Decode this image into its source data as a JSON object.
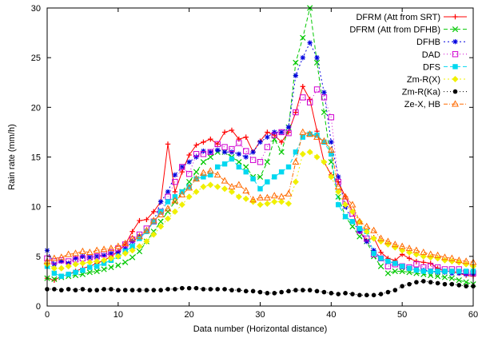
{
  "chart_data": {
    "type": "line",
    "title": "",
    "xlabel": "Data number (Horizontal distance)",
    "ylabel": "Rain rate (mm/h)",
    "xlim": [
      0,
      60
    ],
    "ylim": [
      0,
      30
    ],
    "xticks": [
      0,
      10,
      20,
      30,
      40,
      50,
      60
    ],
    "yticks": [
      0,
      5,
      10,
      15,
      20,
      25,
      30
    ],
    "grid": false,
    "legend_position": "top-right",
    "x": [
      0,
      1,
      2,
      3,
      4,
      5,
      6,
      7,
      8,
      9,
      10,
      11,
      12,
      13,
      14,
      15,
      16,
      17,
      18,
      19,
      20,
      21,
      22,
      23,
      24,
      25,
      26,
      27,
      28,
      29,
      30,
      31,
      32,
      33,
      34,
      35,
      36,
      37,
      38,
      39,
      40,
      41,
      42,
      43,
      44,
      45,
      46,
      47,
      48,
      49,
      50,
      51,
      52,
      53,
      54,
      55,
      56,
      57,
      58,
      59,
      60
    ],
    "series": [
      {
        "name": "DFRM (Att from SRT)",
        "color": "#ff0000",
        "marker": "plus",
        "dash": "",
        "values": [
          2.8,
          2.6,
          3.0,
          3.2,
          3.5,
          3.8,
          4.0,
          4.3,
          4.6,
          5.0,
          5.5,
          6.2,
          7.5,
          8.6,
          8.7,
          9.5,
          10.5,
          16.3,
          11.5,
          13.5,
          15.2,
          16.2,
          16.5,
          16.8,
          16.3,
          17.5,
          17.7,
          16.8,
          17.0,
          15.5,
          16.6,
          17.5,
          17.2,
          16.5,
          17.5,
          19.5,
          22.1,
          20.8,
          17.6,
          14.5,
          13.2,
          12.5,
          11.0,
          9.5,
          7.5,
          6.6,
          6.9,
          5.4,
          4.8,
          4.6,
          5.2,
          4.8,
          4.5,
          4.4,
          4.3,
          3.8,
          3.5,
          3.5,
          3.3,
          3.1,
          3.0
        ]
      },
      {
        "name": "DFRM (Att from DFHB)",
        "color": "#00c800",
        "marker": "x",
        "dash": "5,3",
        "values": [
          2.8,
          2.7,
          2.9,
          3.0,
          3.1,
          3.2,
          3.4,
          3.5,
          3.7,
          3.9,
          4.1,
          4.4,
          4.9,
          5.5,
          6.5,
          7.5,
          8.5,
          9.5,
          10.5,
          11.5,
          12.5,
          13.5,
          14.5,
          15.0,
          15.5,
          15.5,
          15.0,
          14.5,
          14.0,
          13.0,
          13.0,
          14.5,
          16.8,
          15.5,
          18.0,
          24.5,
          27.0,
          30.0,
          24.5,
          19.5,
          14.5,
          11.0,
          9.0,
          8.0,
          7.0,
          6.5,
          5.0,
          4.0,
          3.3,
          3.5,
          3.5,
          3.4,
          3.3,
          3.2,
          3.1,
          3.0,
          2.9,
          2.8,
          2.6,
          2.4,
          2.2
        ]
      },
      {
        "name": "DFHB",
        "color": "#0000e0",
        "marker": "star",
        "dash": "2,3",
        "values": [
          5.6,
          4.2,
          4.5,
          4.3,
          4.8,
          5.0,
          4.9,
          5.0,
          5.1,
          5.3,
          5.4,
          5.8,
          6.5,
          7.0,
          7.5,
          8.5,
          10.5,
          11.5,
          13.2,
          14.0,
          14.5,
          15.0,
          15.6,
          15.5,
          15.7,
          15.5,
          15.5,
          15.3,
          15.0,
          15.5,
          16.5,
          17.0,
          17.5,
          17.5,
          18.0,
          23.2,
          25.0,
          26.5,
          25.0,
          21.5,
          16.5,
          13.0,
          10.0,
          8.5,
          7.5,
          6.5,
          5.6,
          4.8,
          4.5,
          4.3,
          4.0,
          3.8,
          3.7,
          3.6,
          3.5,
          3.4,
          3.4,
          3.3,
          3.3,
          3.2,
          3.2
        ]
      },
      {
        "name": "DAD",
        "color": "#d000d0",
        "marker": "square-open",
        "dash": "1,3",
        "values": [
          4.8,
          4.5,
          4.6,
          4.5,
          4.7,
          4.8,
          4.9,
          5.0,
          5.2,
          5.4,
          5.8,
          6.2,
          6.7,
          7.2,
          7.8,
          8.5,
          9.5,
          11.0,
          12.5,
          14.0,
          13.3,
          15.3,
          15.3,
          15.5,
          16.3,
          16.0,
          15.8,
          16.4,
          15.6,
          14.7,
          14.5,
          16.0,
          17.2,
          17.5,
          17.4,
          19.5,
          21.0,
          20.5,
          21.8,
          21.0,
          19.0,
          12.5,
          10.5,
          9.3,
          7.6,
          6.8,
          5.2,
          4.8,
          4.0,
          4.2,
          4.0,
          3.9,
          4.2,
          3.9,
          4.0,
          3.9,
          3.7,
          3.7,
          3.7,
          3.4,
          3.3
        ]
      },
      {
        "name": "DFS",
        "color": "#00d8f0",
        "marker": "square-filled",
        "dash": "5,3",
        "values": [
          4.0,
          3.3,
          3.0,
          3.2,
          3.4,
          3.6,
          3.9,
          4.0,
          4.3,
          4.6,
          5.0,
          5.5,
          6.0,
          6.8,
          7.5,
          8.5,
          9.5,
          10.5,
          11.0,
          11.5,
          12.0,
          12.8,
          13.0,
          13.2,
          14.0,
          14.3,
          14.8,
          14.0,
          13.5,
          12.8,
          11.8,
          12.5,
          13.0,
          13.5,
          14.0,
          15.5,
          17.0,
          17.3,
          17.2,
          16.5,
          15.3,
          10.2,
          9.0,
          8.5,
          7.8,
          7.5,
          5.3,
          4.8,
          4.5,
          4.3,
          4.0,
          3.8,
          3.6,
          3.5,
          3.5,
          3.5,
          3.5,
          3.5,
          3.5,
          3.5,
          3.5
        ]
      },
      {
        "name": "Zm-R(X)",
        "color": "#f0f000",
        "marker": "diamond",
        "dash": "2,3",
        "values": [
          4.2,
          3.8,
          3.8,
          4.0,
          4.2,
          4.3,
          4.4,
          4.5,
          4.6,
          4.8,
          5.0,
          5.3,
          5.6,
          6.0,
          6.5,
          7.2,
          8.0,
          8.8,
          9.5,
          10.2,
          11.0,
          11.5,
          12.0,
          12.2,
          12.0,
          11.8,
          11.5,
          11.0,
          10.8,
          10.5,
          10.2,
          10.3,
          10.5,
          10.5,
          10.3,
          12.5,
          15.3,
          15.5,
          15.0,
          14.5,
          13.0,
          11.5,
          10.2,
          9.5,
          8.5,
          7.5,
          6.8,
          6.5,
          6.2,
          5.9,
          5.6,
          5.4,
          5.2,
          5.0,
          4.9,
          4.8,
          4.6,
          4.5,
          4.4,
          4.2,
          4.0
        ]
      },
      {
        "name": "Zm-R(Ka)",
        "color": "#000000",
        "marker": "circle-filled",
        "dash": "1,3",
        "values": [
          1.7,
          1.7,
          1.6,
          1.7,
          1.6,
          1.7,
          1.6,
          1.6,
          1.7,
          1.7,
          1.6,
          1.6,
          1.6,
          1.6,
          1.6,
          1.6,
          1.6,
          1.7,
          1.7,
          1.8,
          1.8,
          1.8,
          1.7,
          1.7,
          1.7,
          1.7,
          1.6,
          1.6,
          1.5,
          1.5,
          1.4,
          1.3,
          1.3,
          1.4,
          1.5,
          1.6,
          1.6,
          1.6,
          1.5,
          1.4,
          1.3,
          1.2,
          1.3,
          1.2,
          1.1,
          1.1,
          1.1,
          1.2,
          1.4,
          1.6,
          2.0,
          2.2,
          2.4,
          2.5,
          2.4,
          2.3,
          2.2,
          2.2,
          2.1,
          2.0,
          2.0
        ]
      },
      {
        "name": "Ze-X, HB",
        "color": "#ff6a00",
        "marker": "triangle-open",
        "dash": "5,2,1,2",
        "values": [
          4.5,
          4.8,
          4.9,
          5.2,
          5.3,
          5.5,
          5.4,
          5.6,
          5.7,
          5.8,
          6.0,
          6.3,
          6.8,
          7.0,
          7.6,
          8.6,
          9.2,
          9.8,
          10.6,
          11.2,
          11.9,
          12.8,
          13.4,
          13.6,
          13.2,
          12.6,
          12.0,
          12.2,
          11.6,
          10.7,
          10.9,
          10.9,
          11.1,
          11.0,
          11.3,
          14.5,
          17.5,
          17.3,
          17.0,
          16.6,
          15.7,
          12.0,
          11.0,
          10.2,
          8.5,
          8.0,
          7.6,
          6.8,
          6.5,
          6.2,
          6.0,
          5.8,
          5.6,
          5.4,
          5.2,
          5.1,
          4.9,
          4.8,
          4.6,
          4.5,
          4.4
        ]
      }
    ]
  }
}
